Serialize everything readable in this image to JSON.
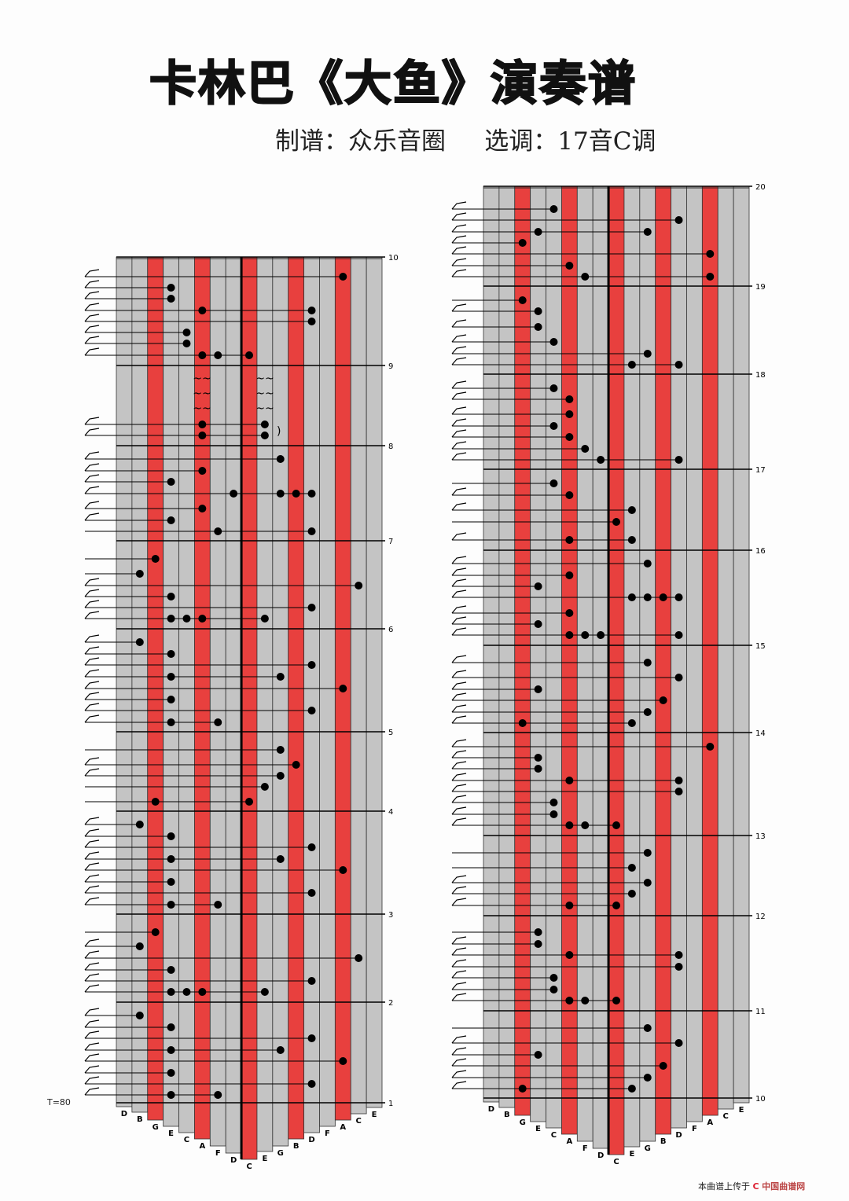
{
  "title": "卡林巴《大鱼》演奏谱",
  "subtitle": "制谱：众乐音圈     选调：17音C调",
  "tempo": "T=80",
  "credit": {
    "prefix": "本曲谱上传于",
    "logo": "C",
    "brand_a": "中国",
    "brand_b": "曲谱网"
  },
  "colors": {
    "red_tine": "#e8403e",
    "gray_tine": "#c4c4c4",
    "note": "#000000"
  },
  "tines": [
    "D",
    "B",
    "G",
    "E",
    "C",
    "A",
    "F",
    "D",
    "C",
    "E",
    "G",
    "B",
    "D",
    "F",
    "A",
    "C",
    "E"
  ],
  "red_tines": [
    2,
    5,
    8,
    11,
    14
  ],
  "left_chart": {
    "measures": [
      "10",
      "9",
      "8",
      "7",
      "6",
      "5",
      "4",
      "3",
      "2",
      "1"
    ],
    "note_rows": [
      [
        14
      ],
      [
        3
      ],
      [
        3
      ],
      [
        5,
        12
      ],
      [
        12
      ],
      [
        4
      ],
      [
        4
      ],
      [
        5,
        6,
        8
      ],
      [
        5,
        9
      ],
      [
        5,
        9
      ],
      [
        10
      ],
      [
        5
      ],
      [
        3
      ],
      [
        7,
        10,
        11,
        12
      ],
      [
        5
      ],
      [
        3
      ],
      [
        6,
        12
      ],
      [
        2
      ],
      [
        1
      ],
      [
        15
      ],
      [
        3
      ],
      [
        12
      ],
      [
        3,
        4,
        5,
        9
      ],
      [
        1
      ],
      [
        3
      ],
      [
        12
      ],
      [
        3,
        10
      ],
      [
        14
      ],
      [
        3
      ],
      [
        12
      ],
      [
        3,
        6
      ],
      [
        10
      ],
      [
        11
      ],
      [
        10
      ],
      [
        9
      ],
      [
        2,
        8
      ],
      [
        1
      ],
      [
        3
      ],
      [
        12
      ],
      [
        3,
        10
      ],
      [
        14
      ],
      [
        3
      ],
      [
        12
      ],
      [
        3,
        6
      ],
      [
        2
      ],
      [
        1
      ],
      [
        15
      ],
      [
        3
      ],
      [
        12
      ],
      [
        3,
        4,
        5,
        9
      ],
      [
        1
      ],
      [
        3
      ],
      [
        12
      ],
      [
        3,
        10
      ],
      [
        14
      ],
      [
        3
      ],
      [
        12
      ],
      [
        3,
        6
      ]
    ],
    "ornaments": [
      "tremolo",
      "tremolo",
      "tremolo",
      ")"
    ]
  },
  "right_chart": {
    "measures": [
      "20",
      "19",
      "18",
      "17",
      "16",
      "15",
      "14",
      "13",
      "12",
      "11",
      "10"
    ],
    "note_rows": [
      [
        4
      ],
      [
        12
      ],
      [
        3,
        10
      ],
      [
        2
      ],
      [
        14
      ],
      [
        5
      ],
      [
        6,
        14
      ],
      [
        2
      ],
      [
        3
      ],
      [
        3
      ],
      [
        4
      ],
      [
        10
      ],
      [
        9,
        12
      ],
      [
        4
      ],
      [
        5
      ],
      [
        5
      ],
      [
        4
      ],
      [
        5
      ],
      [
        6
      ],
      [
        7,
        12
      ],
      [
        4
      ],
      [
        5
      ],
      [
        9
      ],
      [
        8
      ],
      [
        5,
        9
      ],
      [
        10
      ],
      [
        5
      ],
      [
        3
      ],
      [
        9,
        10,
        11,
        12
      ],
      [
        5
      ],
      [
        3
      ],
      [
        5,
        6,
        7,
        12
      ],
      [
        10
      ],
      [
        12
      ],
      [
        3
      ],
      [
        11
      ],
      [
        10
      ],
      [
        2,
        9
      ],
      [
        14
      ],
      [
        3
      ],
      [
        3
      ],
      [
        5,
        12
      ],
      [
        12
      ],
      [
        4
      ],
      [
        4
      ],
      [
        5,
        6,
        8
      ],
      [
        10
      ],
      [
        9
      ],
      [
        10
      ],
      [
        9
      ],
      [
        5,
        8
      ],
      [
        3
      ],
      [
        3
      ],
      [
        5,
        12
      ],
      [
        12
      ],
      [
        4
      ],
      [
        4
      ],
      [
        5,
        6,
        8
      ],
      [
        10
      ],
      [
        12
      ],
      [
        3
      ],
      [
        11
      ],
      [
        10
      ],
      [
        2,
        9
      ]
    ]
  }
}
